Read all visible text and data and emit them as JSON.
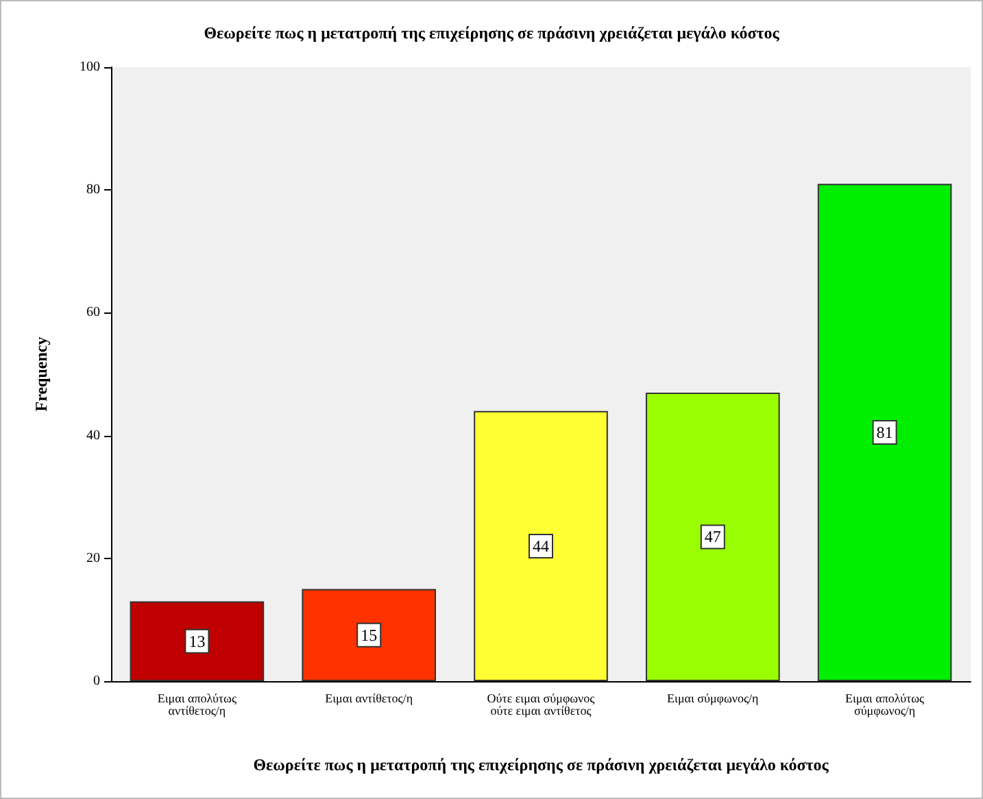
{
  "chart_data": {
    "type": "bar",
    "title": "Θεωρείτε πως η μετατροπή της επιχείρησης σε πράσινη χρειάζεται μεγάλο κόστος",
    "xlabel": "Θεωρείτε πως η μετατροπή της επιχείρησης σε πράσινη χρειάζεται μεγάλο κόστος",
    "ylabel": "Frequency",
    "categories": [
      "Ειμαι απολύτως αντίθετος/η",
      "Ειμαι αντίθετος/η",
      "Ούτε ειμαι σύμφωνος ούτε ειμαι αντίθετος",
      "Ειμαι σύμφωνος/η",
      "Ειμαι απολύτως σύμφωνος/η"
    ],
    "values": [
      13,
      15,
      44,
      47,
      81
    ],
    "colors": [
      "#c00000",
      "#ff3300",
      "#ffff33",
      "#99ff00",
      "#00ee00"
    ],
    "ylim": [
      0,
      100
    ],
    "yticks": [
      0,
      20,
      40,
      60,
      80,
      100
    ],
    "data_labels": true
  }
}
